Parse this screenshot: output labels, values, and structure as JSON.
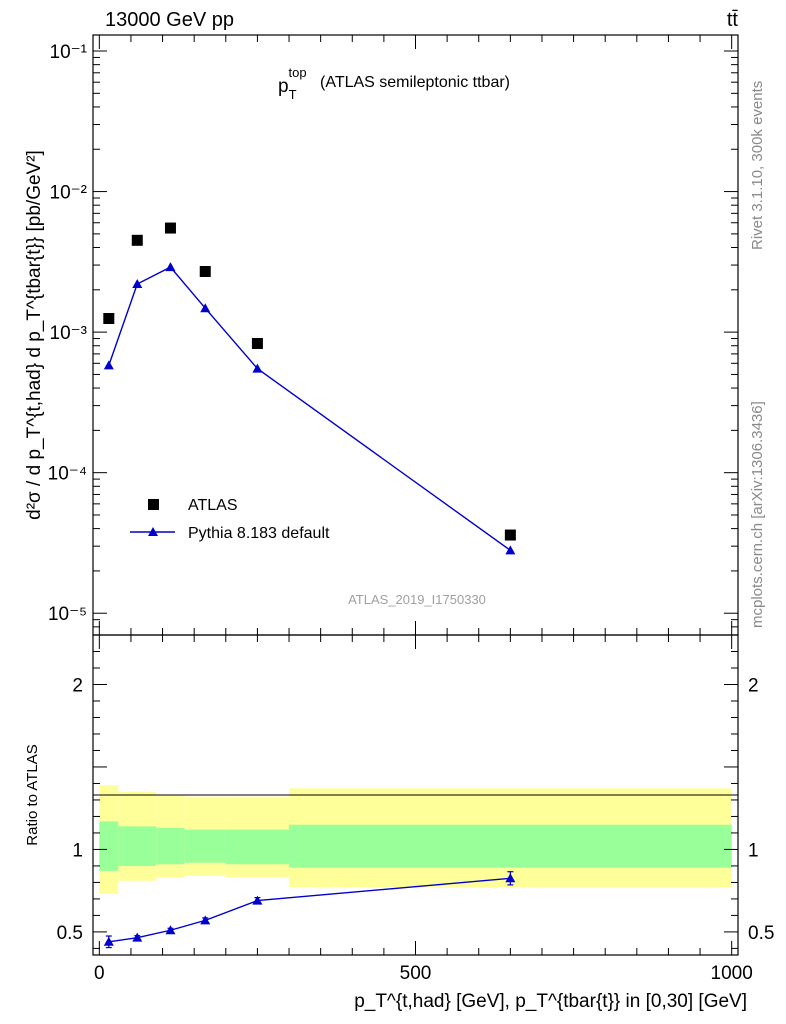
{
  "header": {
    "energy_label": "13000 GeV pp",
    "process_label": "tt̄"
  },
  "side_labels": {
    "rivet": "Rivet 3.1.10,  300k events",
    "mcplots": "mcplots.cern.ch [arXiv:1306.3436]"
  },
  "chart_data": [
    {
      "type": "scatter",
      "title": "(ATLAS semileptonic ttbar)",
      "title_var": "p",
      "title_var_sup": "top",
      "title_var_sub": "T",
      "analysis_id": "ATLAS_2019_I1750330",
      "ylabel": "d²σ / d p_T^{t,had} d p_T^{tbar{t}} [pb/GeV²]",
      "yscale": "log",
      "ylim": [
        7e-06,
        0.13
      ],
      "xlim": [
        -10,
        1010
      ],
      "y_tick_labels": [
        "10⁻¹",
        "10⁻²",
        "10⁻³",
        "10⁻⁴",
        "10⁻⁵"
      ],
      "y_tick_values": [
        0.1,
        0.01,
        0.001,
        0.0001,
        1e-05
      ],
      "legend": [
        {
          "name": "ATLAS",
          "marker": "square",
          "color": "#000000"
        },
        {
          "name": "Pythia 8.183 default",
          "marker": "triangle",
          "color": "#0000cc"
        }
      ],
      "series": [
        {
          "name": "ATLAS",
          "x": [
            15,
            60,
            112.5,
            167.5,
            250,
            650
          ],
          "y": [
            0.00125,
            0.0045,
            0.0055,
            0.0027,
            0.00083,
            3.6e-05
          ]
        },
        {
          "name": "Pythia 8.183 default",
          "x": [
            15,
            60,
            112.5,
            167.5,
            250,
            650
          ],
          "y": [
            0.00058,
            0.0022,
            0.0029,
            0.00148,
            0.00055,
            2.8e-05
          ]
        }
      ]
    },
    {
      "type": "line",
      "ylabel": "Ratio to ATLAS",
      "xlabel": "p_T^{t,had} [GeV], p_T^{tbar{t}} in [0,30] [GeV]",
      "xlim": [
        -10,
        1010
      ],
      "ylim": [
        0.36,
        2.3
      ],
      "x_tick_labels": [
        "0",
        "500",
        "1000"
      ],
      "x_tick_values": [
        0,
        500,
        1000
      ],
      "y_tick_labels": [
        "0.5",
        "1",
        "2"
      ],
      "y_tick_values": [
        0.5,
        1,
        2
      ],
      "bands": {
        "edges": [
          0,
          30,
          90,
          135,
          200,
          300,
          1000
        ],
        "yellow_lo": [
          0.73,
          0.81,
          0.83,
          0.84,
          0.83,
          0.77
        ],
        "yellow_hi": [
          1.39,
          1.35,
          1.33,
          1.32,
          1.32,
          1.37
        ],
        "green_lo": [
          0.87,
          0.9,
          0.91,
          0.92,
          0.91,
          0.89
        ],
        "green_hi": [
          1.17,
          1.14,
          1.13,
          1.12,
          1.12,
          1.15
        ]
      },
      "series": [
        {
          "name": "Pythia 8.183 default",
          "x": [
            15,
            60,
            112.5,
            167.5,
            250,
            650
          ],
          "y": [
            0.44,
            0.465,
            0.51,
            0.57,
            0.69,
            0.825
          ],
          "err": [
            0.035,
            0.012,
            0.012,
            0.015,
            0.018,
            0.04
          ]
        }
      ]
    }
  ]
}
